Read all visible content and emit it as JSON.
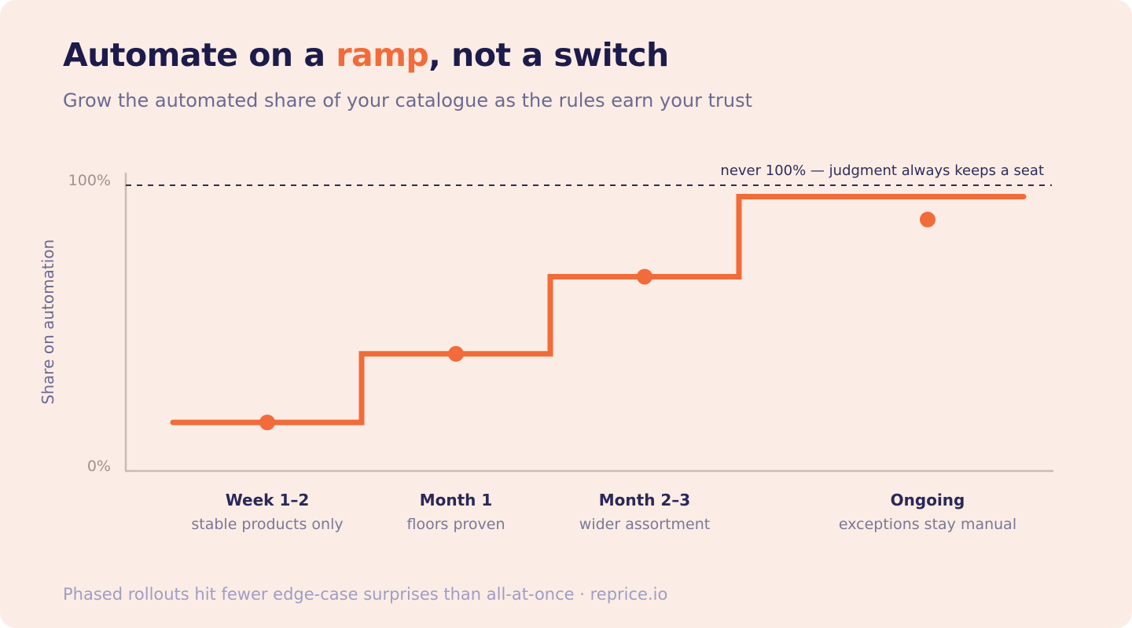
{
  "header": {
    "title_before": "Automate on a ",
    "title_accent": "ramp",
    "title_after": ", not a switch",
    "subtitle": "Grow the automated share of your catalogue as the rules earn your trust"
  },
  "footer": {
    "note": "Phased rollouts hit fewer edge-case surprises than all-at-once · reprice.io"
  },
  "colors": {
    "background": "#fbede5",
    "title": "#1d1b4b",
    "accent": "#f26b3a",
    "axis": "#c9bcb4"
  },
  "chart_data": {
    "type": "line",
    "step": true,
    "ylabel": "Share on automation",
    "ylim": [
      0,
      100
    ],
    "yticks": [
      "0%",
      "100%"
    ],
    "grid": false,
    "reference_line": {
      "value": 100,
      "label": "never 100% — judgment always keeps a seat",
      "style": "dashed"
    },
    "stages": [
      {
        "label": "Week 1–2",
        "note": "stable products only",
        "value": 17
      },
      {
        "label": "Month 1",
        "note": "floors proven",
        "value": 41
      },
      {
        "label": "Month 2–3",
        "note": "wider assortment",
        "value": 68
      },
      {
        "label": "Ongoing",
        "note": "exceptions stay manual",
        "value": 88,
        "final_value": 96
      }
    ]
  }
}
